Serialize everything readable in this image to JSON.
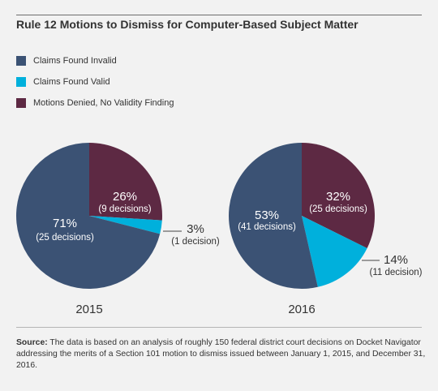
{
  "title": "Rule 12 Motions to Dismiss for Computer-Based Subject Matter",
  "colors": {
    "invalid": "#3b5274",
    "valid": "#00b0dc",
    "denied": "#5d2943"
  },
  "legend": [
    {
      "label": "Claims Found Invalid",
      "key": "invalid"
    },
    {
      "label": "Claims Found Valid",
      "key": "valid"
    },
    {
      "label": "Motions Denied, No Validity Finding",
      "key": "denied"
    }
  ],
  "chart_data": [
    {
      "type": "pie",
      "year": "2015",
      "slices": [
        {
          "key": "denied",
          "pct": 26,
          "pct_label": "26%",
          "count_label": "(9 decisions)"
        },
        {
          "key": "valid",
          "pct": 3,
          "pct_label": "3%",
          "count_label": "(1 decision)"
        },
        {
          "key": "invalid",
          "pct": 71,
          "pct_label": "71%",
          "count_label": "(25 decisions)"
        }
      ]
    },
    {
      "type": "pie",
      "year": "2016",
      "slices": [
        {
          "key": "denied",
          "pct": 32,
          "pct_label": "32%",
          "count_label": "(25 decisions)"
        },
        {
          "key": "valid",
          "pct": 14,
          "pct_label": "14%",
          "count_label": "(11 decision)"
        },
        {
          "key": "invalid",
          "pct": 53,
          "pct_label": "53%",
          "count_label": "(41 decisions)"
        }
      ]
    }
  ],
  "source": {
    "label": "Source:",
    "text": " The data is based on an analysis of roughly 150 federal district court decisions on Docket Navigator addressing the merits of a Section 101 motion to dismiss issued between January 1, 2015, and December 31, 2016."
  }
}
